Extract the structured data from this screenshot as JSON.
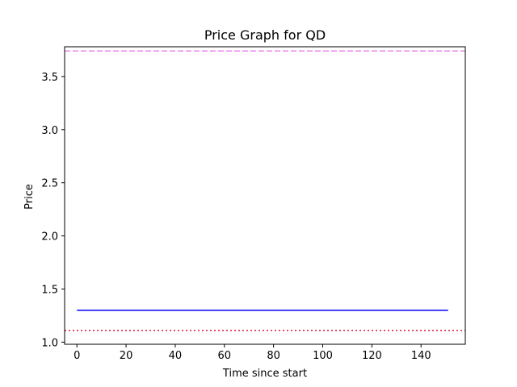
{
  "chart_data": {
    "type": "line",
    "title": "Price Graph for QD",
    "xlabel": "Time since start",
    "ylabel": "Price",
    "xlim": [
      -5,
      158
    ],
    "ylim": [
      0.98,
      3.78
    ],
    "xticks": [
      0,
      20,
      40,
      60,
      80,
      100,
      120,
      140
    ],
    "yticks": [
      1.0,
      1.5,
      2.0,
      2.5,
      3.0,
      3.5
    ],
    "grid": false,
    "series": [
      {
        "x": [
          0,
          151
        ],
        "y": [
          1.3,
          1.3
        ],
        "color": "#0000ff",
        "style": "solid"
      }
    ],
    "hlines": [
      {
        "y": 3.74,
        "color": "#ee82ee",
        "style": "dashed"
      },
      {
        "y": 1.11,
        "color": "#dc143c",
        "style": "dotted"
      }
    ]
  }
}
